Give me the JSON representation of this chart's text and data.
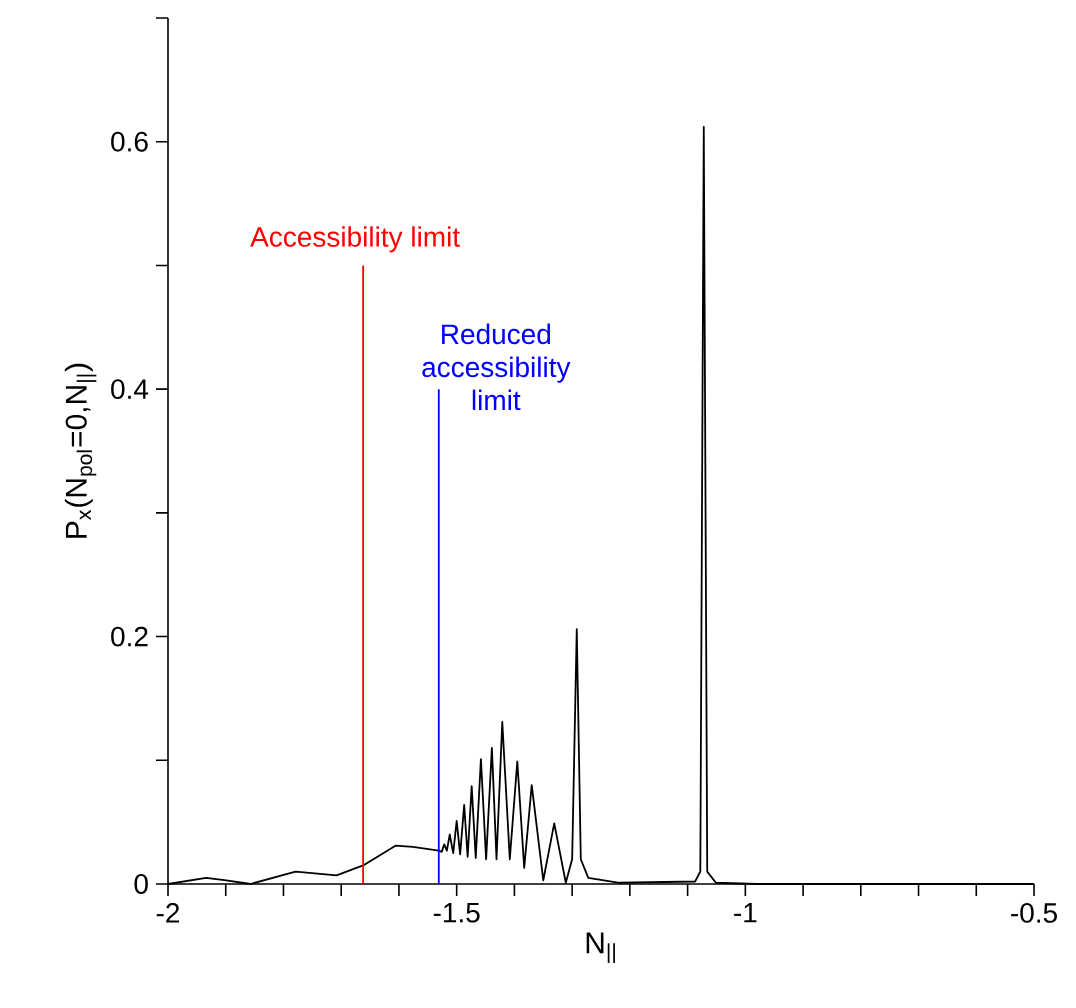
{
  "chart_data": {
    "type": "line",
    "xlabel": "N$_{||}$",
    "ylabel": "P$_{x}$(N$_{pol}$=0,N$_{||}$)",
    "xlim": [
      -2,
      -0.5
    ],
    "ylim": [
      0,
      0.7
    ],
    "xticks": [
      -2,
      {
        "value": -1.9,
        "label": null
      },
      {
        "value": -1.8,
        "label": null
      },
      {
        "value": -1.7,
        "label": null
      },
      {
        "value": -1.6,
        "label": null
      },
      -1.5,
      {
        "value": -1.4,
        "label": null
      },
      {
        "value": -1.3,
        "label": null
      },
      {
        "value": -1.2,
        "label": null
      },
      {
        "value": -1.1,
        "label": null
      },
      -1,
      {
        "value": -0.9,
        "label": null
      },
      {
        "value": -0.8,
        "label": null
      },
      {
        "value": -0.7,
        "label": null
      },
      {
        "value": -0.6,
        "label": null
      },
      -0.5
    ],
    "yticks": [
      0,
      {
        "value": 0.1,
        "label": null
      },
      0.2,
      {
        "value": 0.3,
        "label": null
      },
      0.4,
      {
        "value": 0.5,
        "label": null
      },
      0.6,
      {
        "value": 0.7,
        "label": null
      }
    ],
    "marker": "none",
    "line_style": "solid",
    "series": [
      {
        "color": "#000000",
        "x": [
          -2,
          -1.934,
          -1.899,
          -1.857,
          -1.779,
          -1.708,
          -1.662,
          -1.606,
          -1.576,
          -1.531,
          -1.526,
          -1.5215,
          -1.517,
          -1.512,
          -1.506,
          -1.5,
          -1.494,
          -1.487,
          -1.481,
          -1.474,
          -1.467,
          -1.458,
          -1.449,
          -1.439,
          -1.431,
          -1.421,
          -1.408,
          -1.395,
          -1.383,
          -1.37,
          -1.35,
          -1.331,
          -1.311,
          -1.3,
          -1.292,
          -1.285,
          -1.272,
          -1.218,
          -1.087,
          -1.078,
          -1.072,
          -1.066,
          -1.051,
          -0.98,
          -0.5
        ],
        "values": [
          0,
          0.005,
          0.003,
          0,
          0.01,
          0.007,
          0.015,
          0.031,
          0.03,
          0.027,
          0.026,
          0.032,
          0.027,
          0.04,
          0.025,
          0.051,
          0.024,
          0.064,
          0.022,
          0.079,
          0.021,
          0.101,
          0.02,
          0.11,
          0.02,
          0.131,
          0.02,
          0.099,
          0.013,
          0.08,
          0.003,
          0.049,
          0.001,
          0.02,
          0.206,
          0.02,
          0.005,
          0.001,
          0.002,
          0.01,
          0.612,
          0.01,
          0.001,
          0,
          0
        ]
      },
      {
        "color": "#ff0000",
        "x": [
          -1.662,
          -1.662
        ],
        "values": [
          0,
          0.5
        ]
      },
      {
        "color": "#0000ff",
        "x": [
          -1.531,
          -1.531
        ],
        "values": [
          0,
          0.4
        ]
      }
    ],
    "annotations": [
      {
        "text": "Accessibility limit",
        "x": -1.662,
        "y": 0.5
      },
      {
        "text": "Reduced accessibility limit",
        "x": -1.531,
        "y": 0.4
      }
    ]
  }
}
